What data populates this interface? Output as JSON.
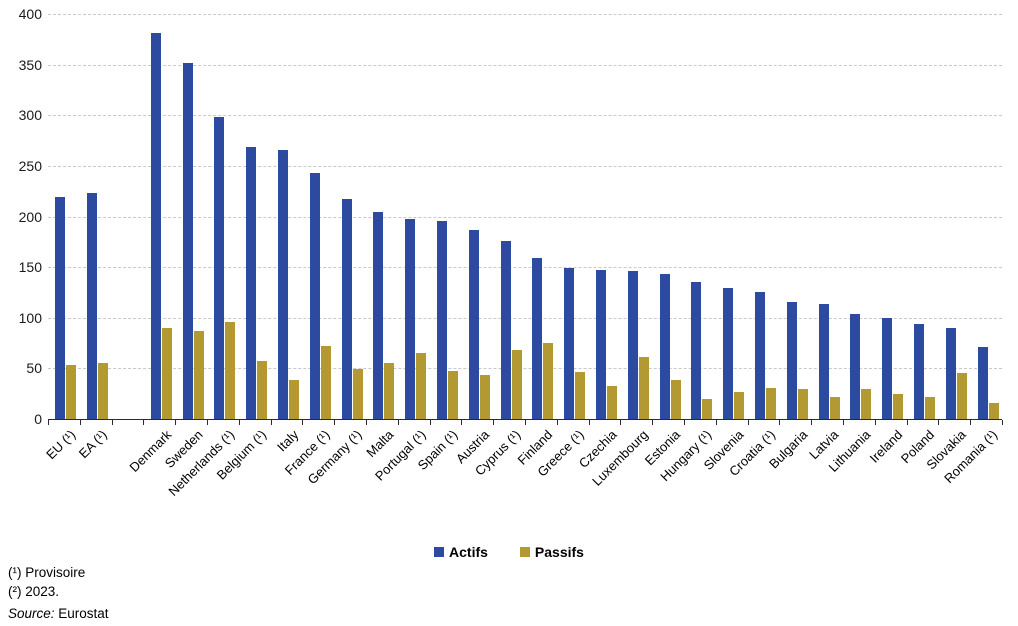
{
  "chart_data": {
    "type": "bar",
    "title": "",
    "categories": [
      "EU (¹)",
      "EA (¹)",
      "Denmark",
      "Sweden",
      "Netherlands (¹)",
      "Belgium (¹)",
      "Italy",
      "France (¹)",
      "Germany (¹)",
      "Malta",
      "Portugal (¹)",
      "Spain (¹)",
      "Austria",
      "Cyprus (¹)",
      "Finland",
      "Greece (¹)",
      "Czechia",
      "Luxembourg",
      "Estonia",
      "Hungary (¹)",
      "Slovenia",
      "Croatia (¹)",
      "Bulgaria",
      "Latvia",
      "Lithuania",
      "Ireland",
      "Poland",
      "Slovakia",
      "Romania (¹)"
    ],
    "series": [
      {
        "name": "Actifs",
        "color": "#2b4aa0",
        "values": [
          219,
          223,
          381,
          352,
          298,
          269,
          266,
          243,
          217,
          204,
          198,
          196,
          187,
          176,
          159,
          149,
          147,
          146,
          143,
          135,
          129,
          125,
          116,
          114,
          104,
          100,
          94,
          90,
          71
        ]
      },
      {
        "name": "Passifs",
        "color": "#b29932",
        "values": [
          53,
          55,
          90,
          87,
          96,
          57,
          39,
          72,
          49,
          55,
          65,
          47,
          43,
          68,
          75,
          46,
          33,
          61,
          39,
          20,
          27,
          31,
          30,
          22,
          30,
          25,
          22,
          45,
          16
        ]
      }
    ],
    "xlabel": "",
    "ylabel": "",
    "ylim": [
      0,
      400
    ],
    "yticks": [
      0,
      50,
      100,
      150,
      200,
      250,
      300,
      350,
      400
    ],
    "grid": "horizontal-dashed",
    "legend_position": "bottom-center",
    "gap_after_category_index": 1,
    "x_label_rotation_deg": -45
  },
  "legend": {
    "items": [
      {
        "label": "Actifs",
        "color": "#2b4aa0"
      },
      {
        "label": "Passifs",
        "color": "#b29932"
      }
    ]
  },
  "footnotes": {
    "line1": "(¹) Provisoire",
    "line2": "(²) 2023.",
    "source_label": "Source:",
    "source_value": " Eurostat"
  }
}
